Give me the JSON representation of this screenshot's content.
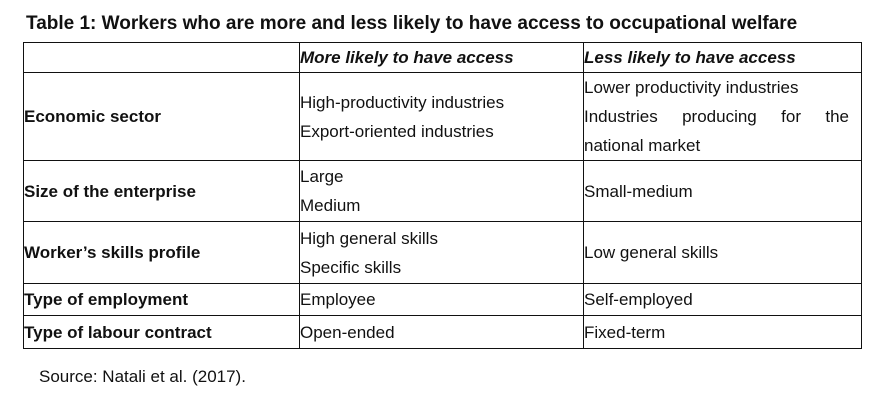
{
  "title": "Table 1: Workers who are more and less likely to have access to occupational welfare",
  "table": {
    "headers": [
      "",
      "More likely to have access",
      "Less likely to have access"
    ],
    "rows": [
      {
        "label": "Economic sector",
        "more": [
          "High-productivity industries",
          "Export-oriented industries"
        ],
        "less": [
          "Lower productivity industries",
          "Industries producing for the",
          "national market"
        ]
      },
      {
        "label": "Size of the enterprise",
        "more": [
          "Large",
          "Medium"
        ],
        "less": [
          "Small-medium"
        ]
      },
      {
        "label": "Worker’s skills profile",
        "more": [
          "High general skills",
          "Specific skills"
        ],
        "less": [
          "Low general skills"
        ]
      },
      {
        "label": "Type of employment",
        "more": [
          "Employee"
        ],
        "less": [
          "Self-employed"
        ]
      },
      {
        "label": "Type of labour contract",
        "more": [
          "Open-ended"
        ],
        "less": [
          "Fixed-term"
        ]
      }
    ]
  },
  "source": "Source: Natali et al. (2017)."
}
